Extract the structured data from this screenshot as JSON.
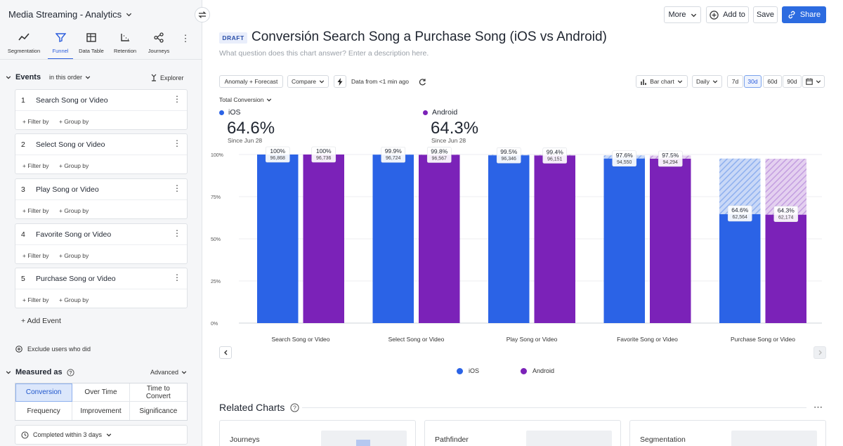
{
  "app": {
    "title": "Media Streaming - Analytics"
  },
  "chart_types": [
    {
      "label": "Segmentation",
      "icon": "line-chart-icon",
      "active": false
    },
    {
      "label": "Funnel",
      "icon": "funnel-icon",
      "active": true
    },
    {
      "label": "Data Table",
      "icon": "table-icon",
      "active": false
    },
    {
      "label": "Retention",
      "icon": "retention-icon",
      "active": false
    },
    {
      "label": "Journeys",
      "icon": "journeys-icon",
      "active": false
    }
  ],
  "events_panel": {
    "title": "Events",
    "order": "in this order",
    "explorer": "Explorer",
    "filter_label": "+ Filter by",
    "group_label": "+ Group by",
    "items": [
      {
        "num": "1",
        "name": "Search Song or Video"
      },
      {
        "num": "2",
        "name": "Select Song or Video"
      },
      {
        "num": "3",
        "name": "Play Song or Video"
      },
      {
        "num": "4",
        "name": "Favorite Song or Video"
      },
      {
        "num": "5",
        "name": "Purchase Song or Video"
      }
    ],
    "add_event": "+ Add Event",
    "exclude": "Exclude users who did"
  },
  "measured": {
    "title": "Measured as",
    "advanced": "Advanced",
    "options": [
      "Conversion",
      "Over Time",
      "Time to Convert",
      "Frequency",
      "Improvement",
      "Significance"
    ],
    "selected": "Conversion",
    "completed": "Completed within 3 days"
  },
  "toolbar": {
    "more": "More",
    "add_to": "Add to",
    "save": "Save",
    "share": "Share"
  },
  "header": {
    "badge": "DRAFT",
    "title": "Conversión Search Song a Purchase Song (iOS vs Android)",
    "description_placeholder": "What question does this chart answer? Enter a description here."
  },
  "controls": {
    "anomaly": "Anomaly + Forecast",
    "compare": "Compare",
    "data_from": "Data from <1 min ago",
    "chart_type": "Bar chart",
    "interval": "Daily",
    "ranges": [
      "7d",
      "30d",
      "60d",
      "90d"
    ],
    "selected_range": "30d",
    "metric": "Total Conversion"
  },
  "stats": [
    {
      "series": "iOS",
      "value": "64.6%",
      "since": "Since Jun 28"
    },
    {
      "series": "Android",
      "value": "64.3%",
      "since": "Since Jun 28"
    }
  ],
  "colors": {
    "ios": "#2b63e6",
    "android": "#7b22b8",
    "accent": "#2c6be0"
  },
  "chart_data": {
    "type": "bar",
    "categories": [
      "Search Song or Video",
      "Select Song or Video",
      "Play Song or Video",
      "Favorite Song or Video",
      "Purchase Song or Video"
    ],
    "series": [
      {
        "name": "iOS",
        "values": [
          100,
          99.9,
          99.5,
          97.6,
          64.6
        ],
        "labels": [
          "100%",
          "99.9%",
          "99.5%",
          "97.6%",
          "64.6%"
        ],
        "counts": [
          "96,868",
          "96,724",
          "96,346",
          "94,550",
          "62,564"
        ]
      },
      {
        "name": "Android",
        "values": [
          100,
          99.8,
          99.4,
          97.5,
          64.3
        ],
        "labels": [
          "100%",
          "99.8%",
          "99.4%",
          "97.5%",
          "64.3%"
        ],
        "counts": [
          "96,736",
          "96,567",
          "96,151",
          "94,294",
          "62,174"
        ]
      }
    ],
    "ytick_labels": [
      "100%",
      "75%",
      "50%",
      "25%",
      "0%"
    ],
    "ylim": [
      0,
      100
    ],
    "legend": "bottom-center"
  },
  "related": {
    "title": "Related Charts",
    "cards": [
      "Journeys",
      "Pathfinder",
      "Segmentation"
    ]
  }
}
